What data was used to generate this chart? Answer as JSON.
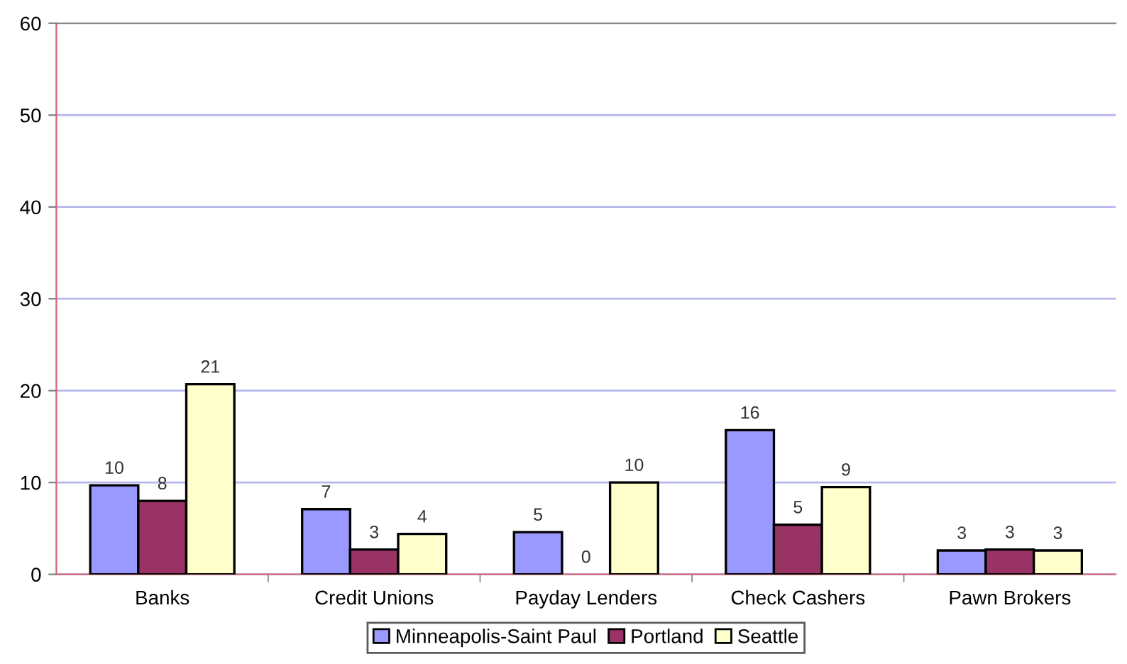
{
  "chart_data": {
    "type": "bar",
    "categories": [
      "Banks",
      "Credit Unions",
      "Payday Lenders",
      "Check Cashers",
      "Pawn Brokers"
    ],
    "series": [
      {
        "name": "Minneapolis-Saint Paul",
        "color": "#9999ff",
        "values": [
          9.7,
          7.1,
          4.6,
          15.7,
          2.6
        ],
        "value_labels": [
          "10",
          "7",
          "5",
          "16",
          "3"
        ]
      },
      {
        "name": "Portland",
        "color": "#993366",
        "values": [
          8.0,
          2.7,
          0,
          5.4,
          2.7
        ],
        "value_labels": [
          "8",
          "3",
          "0",
          "5",
          "3"
        ]
      },
      {
        "name": "Seattle",
        "color": "#ffffcc",
        "values": [
          20.7,
          4.4,
          10.0,
          9.5,
          2.6
        ],
        "value_labels": [
          "21",
          "4",
          "10",
          "9",
          "3"
        ]
      }
    ],
    "ylim": [
      0,
      60
    ],
    "yticks": [
      0,
      10,
      20,
      30,
      40,
      50,
      60
    ],
    "grid": "y",
    "legend": "bottom"
  }
}
